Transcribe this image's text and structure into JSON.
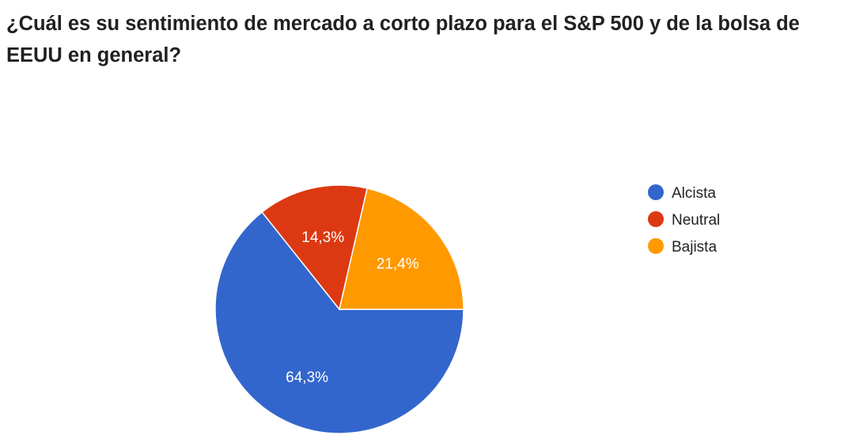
{
  "question": {
    "title": "¿Cuál es su sentimiento de mercado a corto plazo para el S&P 500 y de la bolsa de EEUU en general?"
  },
  "chart_data": {
    "type": "pie",
    "title": "¿Cuál es su sentimiento de mercado a corto plazo para el S&P 500 y de la bolsa de EEUU en general?",
    "legend_position": "right",
    "slices": [
      {
        "label": "Alcista",
        "value": 64.3,
        "display": "64,3%",
        "color": "#3366cc"
      },
      {
        "label": "Neutral",
        "value": 14.3,
        "display": "14,3%",
        "color": "#dc3912"
      },
      {
        "label": "Bajista",
        "value": 21.4,
        "display": "21,4%",
        "color": "#ff9900"
      }
    ]
  }
}
